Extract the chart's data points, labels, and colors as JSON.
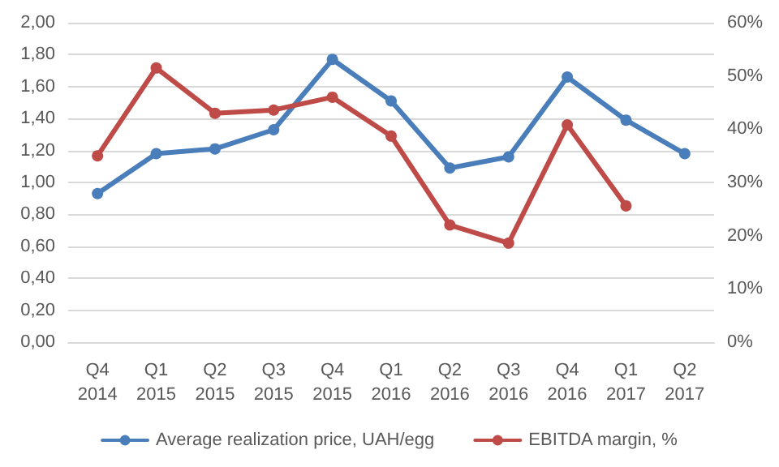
{
  "chart_data": {
    "type": "line",
    "categories": [
      "Q4\n2014",
      "Q1\n2015",
      "Q2\n2015",
      "Q3\n2015",
      "Q4\n2015",
      "Q1\n2016",
      "Q2\n2016",
      "Q3\n2016",
      "Q4\n2016",
      "Q1\n2017",
      "Q2\n2017"
    ],
    "series": [
      {
        "name": "Average realization price, UAH/egg",
        "color": "#4a7ebb",
        "values": [
          0.93,
          1.18,
          1.21,
          1.33,
          1.77,
          1.51,
          1.09,
          1.16,
          1.66,
          1.39,
          1.18
        ]
      },
      {
        "name": "EBITDA margin, %",
        "color": "#be4b48",
        "axis": "y2",
        "values": [
          35,
          51.5,
          43,
          43.6,
          46,
          38.7,
          22,
          18.6,
          40.8,
          25.6,
          null
        ]
      }
    ],
    "ylim": [
      0,
      2
    ],
    "yticks": [
      {
        "value": 0,
        "label": "0,00"
      },
      {
        "value": 0.2,
        "label": "0,20"
      },
      {
        "value": 0.4,
        "label": "0,40"
      },
      {
        "value": 0.6,
        "label": "0,60"
      },
      {
        "value": 0.8,
        "label": "0,80"
      },
      {
        "value": 1,
        "label": "1,00"
      },
      {
        "value": 1.2,
        "label": "1,20"
      },
      {
        "value": 1.4,
        "label": "1,40"
      },
      {
        "value": 1.6,
        "label": "1,60"
      },
      {
        "value": 1.8,
        "label": "1,80"
      },
      {
        "value": 2,
        "label": "2,00"
      }
    ],
    "y2lim": [
      0,
      60
    ],
    "y2ticks": [
      {
        "value": 0,
        "label": "0%"
      },
      {
        "value": 10,
        "label": "10%"
      },
      {
        "value": 20,
        "label": "20%"
      },
      {
        "value": 30,
        "label": "30%"
      },
      {
        "value": 40,
        "label": "40%"
      },
      {
        "value": 50,
        "label": "50%"
      },
      {
        "value": 60,
        "label": "60%"
      }
    ],
    "grid": "y",
    "legend": "bottom",
    "marker": "circle",
    "line_style": "solid"
  }
}
